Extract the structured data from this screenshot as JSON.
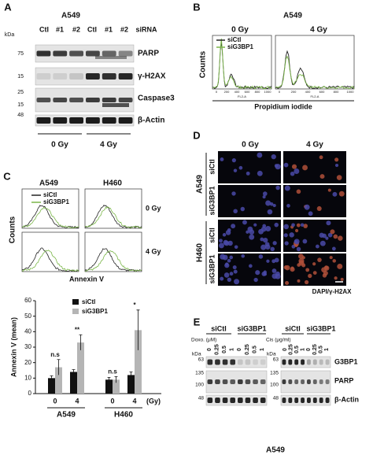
{
  "panel_a": {
    "label": "A",
    "cell_line": "A549",
    "lanes": [
      "Ctl",
      "#1",
      "#2",
      "Ctl",
      "#1",
      "#2"
    ],
    "lane_header": "siRNA",
    "kda": "kDa",
    "markers": [
      "75",
      "15",
      "25",
      "15",
      "48"
    ],
    "proteins": [
      "PARP",
      "γ-H2AX",
      "Caspase3",
      "β-Actin"
    ],
    "doses": [
      "0 Gy",
      "4 Gy"
    ]
  },
  "panel_b": {
    "label": "B",
    "cell_line": "A549",
    "doses": [
      "0 Gy",
      "4 Gy"
    ],
    "y_label": "Counts",
    "legend": [
      "siCtl",
      "siG3BP1"
    ],
    "ticks": [
      "0",
      "200",
      "400",
      "600",
      "800",
      "1000"
    ],
    "channel": "FL2-A",
    "x_label": "Propidium iodide"
  },
  "panel_c": {
    "label": "C",
    "cell_lines": [
      "A549",
      "H460"
    ],
    "doses": [
      "0 Gy",
      "4 Gy"
    ],
    "y_label": "Counts",
    "legend": [
      "siCtl",
      "siG3BP1"
    ],
    "x_label": "Annexin V"
  },
  "chart_data": {
    "type": "bar",
    "y_label": "Annexin V (mean)",
    "categories": [
      "0",
      "4",
      "0",
      "4"
    ],
    "groups": [
      "A549",
      "H460"
    ],
    "x_unit": "(Gy)",
    "series": [
      {
        "name": "siCtl",
        "color": "#111111",
        "values": [
          10,
          14,
          9,
          12
        ],
        "errors": [
          1.5,
          1.5,
          1.5,
          2
        ]
      },
      {
        "name": "siG3BP1",
        "color": "#b5b5b5",
        "values": [
          17,
          33,
          9,
          41
        ],
        "errors": [
          5,
          5,
          2,
          13
        ]
      }
    ],
    "annotations": [
      "n.s",
      "**",
      "n.s",
      "*"
    ],
    "ylim": [
      0,
      60
    ],
    "yticks": [
      0,
      10,
      20,
      30,
      40,
      50,
      60
    ]
  },
  "panel_d": {
    "label": "D",
    "doses": [
      "0 Gy",
      "4 Gy"
    ],
    "cell_lines": [
      "A549",
      "H460"
    ],
    "conditions": [
      "siCtl",
      "siG3BP1",
      "siCtl",
      "siG3BP1"
    ],
    "stain_dapi": "DAPI/",
    "stain_h2ax": "γ-H2AX"
  },
  "panel_e": {
    "label": "E",
    "groups_left": [
      "siCtl",
      "siG3BP1"
    ],
    "groups_right": [
      "siCtl",
      "siG3BP1"
    ],
    "drug_left": "Doxo. (μM)",
    "drug_right": "Cis (μg/ml)",
    "doses": [
      "0",
      "0.25",
      "0.5",
      "1",
      "0",
      "0.25",
      "0.5",
      "1"
    ],
    "kda": "kDa",
    "markers": [
      "63",
      "135",
      "100",
      "48"
    ],
    "proteins": [
      "G3BP1",
      "PARP",
      "β-Actin"
    ],
    "cell_line": "A549"
  }
}
